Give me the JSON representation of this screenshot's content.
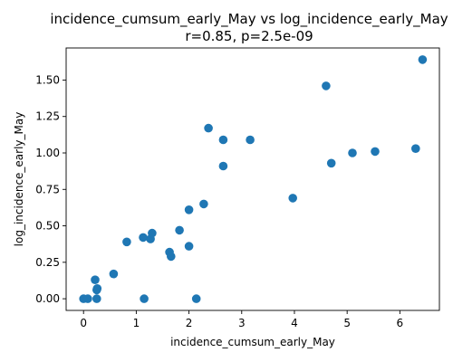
{
  "chart_data": {
    "type": "scatter",
    "title": "incidence_cumsum_early_May vs log_incidence_early_May",
    "subtitle": "r=0.85, p=2.5e-09",
    "xlabel": "incidence_cumsum_early_May",
    "ylabel": "log_incidence_early_May",
    "xlim": [
      -0.33,
      6.75
    ],
    "ylim": [
      -0.08,
      1.72
    ],
    "xticks": [
      0,
      1,
      2,
      3,
      4,
      5,
      6
    ],
    "xtick_labels": [
      "0",
      "1",
      "2",
      "3",
      "4",
      "5",
      "6"
    ],
    "yticks": [
      0.0,
      0.25,
      0.5,
      0.75,
      1.0,
      1.25,
      1.5
    ],
    "ytick_labels": [
      "0.00",
      "0.25",
      "0.50",
      "0.75",
      "1.00",
      "1.25",
      "1.50"
    ],
    "grid": false,
    "marker_color": "#1f77b4",
    "points": [
      {
        "x": 0.0,
        "y": 0.0
      },
      {
        "x": 0.08,
        "y": 0.0
      },
      {
        "x": 0.25,
        "y": 0.0
      },
      {
        "x": 0.25,
        "y": 0.06
      },
      {
        "x": 0.26,
        "y": 0.07
      },
      {
        "x": 0.22,
        "y": 0.13
      },
      {
        "x": 0.57,
        "y": 0.17
      },
      {
        "x": 0.82,
        "y": 0.39
      },
      {
        "x": 1.15,
        "y": 0.0
      },
      {
        "x": 1.13,
        "y": 0.42
      },
      {
        "x": 1.27,
        "y": 0.41
      },
      {
        "x": 1.3,
        "y": 0.45
      },
      {
        "x": 1.63,
        "y": 0.32
      },
      {
        "x": 1.66,
        "y": 0.29
      },
      {
        "x": 1.82,
        "y": 0.47
      },
      {
        "x": 2.0,
        "y": 0.36
      },
      {
        "x": 2.0,
        "y": 0.61
      },
      {
        "x": 2.14,
        "y": 0.0
      },
      {
        "x": 2.28,
        "y": 0.65
      },
      {
        "x": 2.37,
        "y": 1.17
      },
      {
        "x": 2.65,
        "y": 0.91
      },
      {
        "x": 2.65,
        "y": 1.09
      },
      {
        "x": 3.16,
        "y": 1.09
      },
      {
        "x": 3.97,
        "y": 0.69
      },
      {
        "x": 4.6,
        "y": 1.46
      },
      {
        "x": 4.7,
        "y": 0.93
      },
      {
        "x": 5.1,
        "y": 1.0
      },
      {
        "x": 5.53,
        "y": 1.01
      },
      {
        "x": 6.3,
        "y": 1.03
      },
      {
        "x": 6.43,
        "y": 1.64
      }
    ]
  }
}
